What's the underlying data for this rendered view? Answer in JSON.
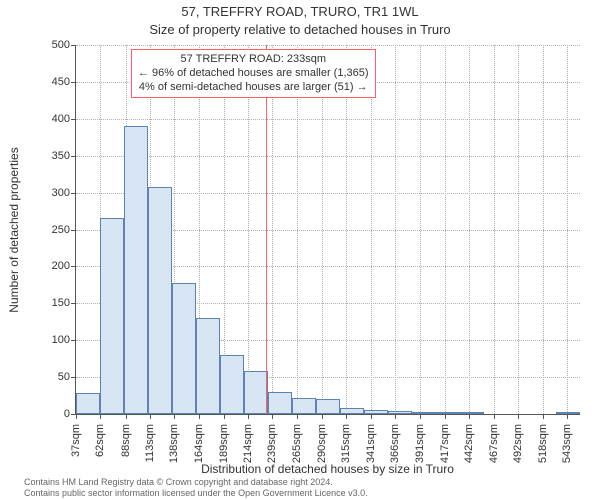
{
  "title_main": "57, TREFFRY ROAD, TRURO, TR1 1WL",
  "title_sub": "Size of property relative to detached houses in Truro",
  "y_axis_title": "Number of detached properties",
  "x_axis_title": "Distribution of detached houses by size in Truro",
  "chart": {
    "type": "histogram",
    "background_color": "#ffffff",
    "grid_color": "#b0b0b0",
    "axis_color": "#555555",
    "y": {
      "min": 0,
      "max": 500,
      "ticks": [
        0,
        50,
        100,
        150,
        200,
        250,
        300,
        350,
        400,
        450,
        500
      ],
      "fontsize": 11
    },
    "x": {
      "min": 37,
      "max": 556,
      "tick_values": [
        37,
        62,
        88,
        113,
        138,
        164,
        189,
        214,
        239,
        265,
        290,
        315,
        341,
        366,
        391,
        417,
        442,
        467,
        492,
        518,
        543
      ],
      "tick_labels": [
        "37sqm",
        "62sqm",
        "88sqm",
        "113sqm",
        "138sqm",
        "164sqm",
        "189sqm",
        "214sqm",
        "239sqm",
        "265sqm",
        "290sqm",
        "315sqm",
        "341sqm",
        "366sqm",
        "391sqm",
        "417sqm",
        "442sqm",
        "467sqm",
        "492sqm",
        "518sqm",
        "543sqm"
      ],
      "fontsize": 11
    },
    "bars": {
      "fill_color": "#d7e5f4",
      "border_color": "#5b84b1",
      "border_width": 1,
      "values": [
        28,
        265,
        390,
        307,
        178,
        130,
        80,
        58,
        30,
        22,
        20,
        8,
        5,
        4,
        3,
        2,
        2,
        0,
        0,
        0,
        3
      ]
    },
    "reference_line": {
      "x_value": 233,
      "color": "#ff6060"
    },
    "annotation": {
      "border_color": "#ff6060",
      "lines": [
        "57 TREFFRY ROAD: 233sqm",
        "← 96% of detached houses are smaller (1,365)",
        "4% of semi-detached houses are larger (51) →"
      ]
    }
  },
  "footer_line1": "Contains HM Land Registry data © Crown copyright and database right 2024.",
  "footer_line2": "Contains public sector information licensed under the Open Government Licence v3.0."
}
